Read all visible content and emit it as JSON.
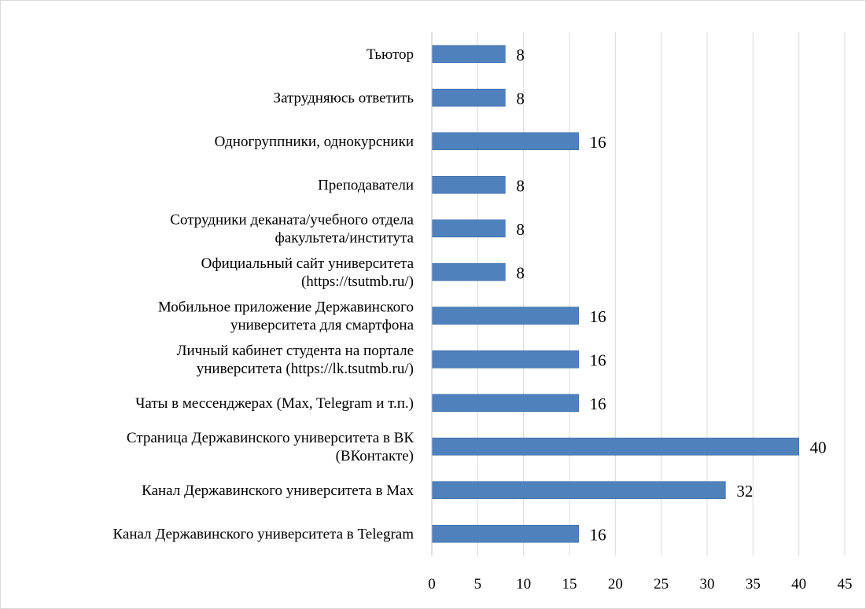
{
  "chart_data": {
    "type": "bar",
    "orientation": "horizontal",
    "categories": [
      [
        "Тьютор"
      ],
      [
        "Затрудняюсь ответить"
      ],
      [
        "Одногруппники, однокурсники"
      ],
      [
        "Преподаватели"
      ],
      [
        "Сотрудники деканата/учебного отдела",
        "факультета/института"
      ],
      [
        "Официальный сайт университета",
        "(https://tsutmb.ru/)"
      ],
      [
        "Мобильное приложение Державинского",
        "университета для смартфона"
      ],
      [
        "Личный кабинет студента на портале",
        "университета (https://lk.tsutmb.ru/)"
      ],
      [
        "Чаты в мессенджерах (Max, Telegram и т.п.)"
      ],
      [
        "Страница Державинского университета в ВК",
        "(ВКонтакте)"
      ],
      [
        "Канал Державинского университета в Max"
      ],
      [
        "Канал Державинского университета в Telegram"
      ]
    ],
    "values": [
      8,
      8,
      16,
      8,
      8,
      8,
      16,
      16,
      16,
      40,
      32,
      16
    ],
    "data_labels": [
      "8",
      "8",
      "16",
      "8",
      "8",
      "8",
      "16",
      "16",
      "16",
      "40",
      "32",
      "16"
    ],
    "xlim": [
      0,
      45
    ],
    "x_ticks": [
      0,
      5,
      10,
      15,
      20,
      25,
      30,
      35,
      40,
      45
    ],
    "x_tick_labels": [
      "0",
      "5",
      "10",
      "15",
      "20",
      "25",
      "30",
      "35",
      "40",
      "45"
    ],
    "grid": "vertical",
    "legend": "none",
    "title": "",
    "xlabel": "",
    "ylabel": "",
    "colors": {
      "bar": "#4f81bd",
      "bar_edge": "#3a6aa0",
      "grid": "#d9d9d9",
      "axis": "#bfbfbf"
    }
  }
}
